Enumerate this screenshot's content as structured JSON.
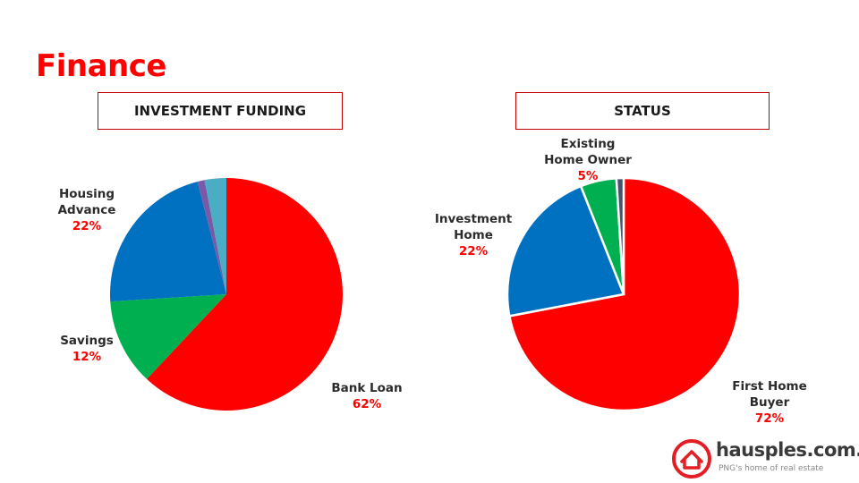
{
  "title": "Finance",
  "colors": {
    "title": "#ff0000",
    "red": "#ff0000",
    "blue": "#0070c0",
    "green": "#00b050",
    "purple": "#7a5aa6",
    "light_blue": "#4bacc6",
    "dark_navy": "#44546a"
  },
  "chart_data": [
    {
      "type": "pie",
      "title": "INVESTMENT FUNDING",
      "slices": [
        {
          "label": "Bank Loan",
          "value": 62,
          "pct_label": "62%",
          "color": "#ff0000"
        },
        {
          "label": "Savings",
          "value": 12,
          "pct_label": "12%",
          "color": "#00b050"
        },
        {
          "label": "Housing Advance",
          "value": 22,
          "pct_label": "22%",
          "color": "#0070c0"
        },
        {
          "label": "",
          "value": 1,
          "pct_label": "",
          "color": "#7a5aa6"
        },
        {
          "label": "",
          "value": 3,
          "pct_label": "",
          "color": "#4bacc6"
        }
      ]
    },
    {
      "type": "pie",
      "title": "STATUS",
      "slices": [
        {
          "label": "First Home Buyer",
          "value": 72,
          "pct_label": "72%",
          "color": "#ff0000"
        },
        {
          "label": "Investment Home",
          "value": 22,
          "pct_label": "22%",
          "color": "#0070c0"
        },
        {
          "label": "Existing Home Owner",
          "value": 5,
          "pct_label": "5%",
          "color": "#00b050"
        },
        {
          "label": "",
          "value": 1,
          "pct_label": "",
          "color": "#44546a"
        }
      ]
    }
  ],
  "labels": {
    "left": {
      "bank_loan_name": "Bank Loan",
      "bank_loan_pct": "62%",
      "savings_name": "Savings",
      "savings_pct": "12%",
      "housing_line1": "Housing",
      "housing_line2": "Advance",
      "housing_pct": "22%"
    },
    "right": {
      "first_line1": "First Home",
      "first_line2": "Buyer",
      "first_pct": "72%",
      "invest_line1": "Investment",
      "invest_line2": "Home",
      "invest_pct": "22%",
      "existing_line1": "Existing",
      "existing_line2": "Home Owner",
      "existing_pct": "5%"
    }
  },
  "logo": {
    "name": "hausples.com.pg",
    "tagline": "PNG's home of real estate",
    "icon": "house-icon",
    "color": "#e31e24"
  }
}
